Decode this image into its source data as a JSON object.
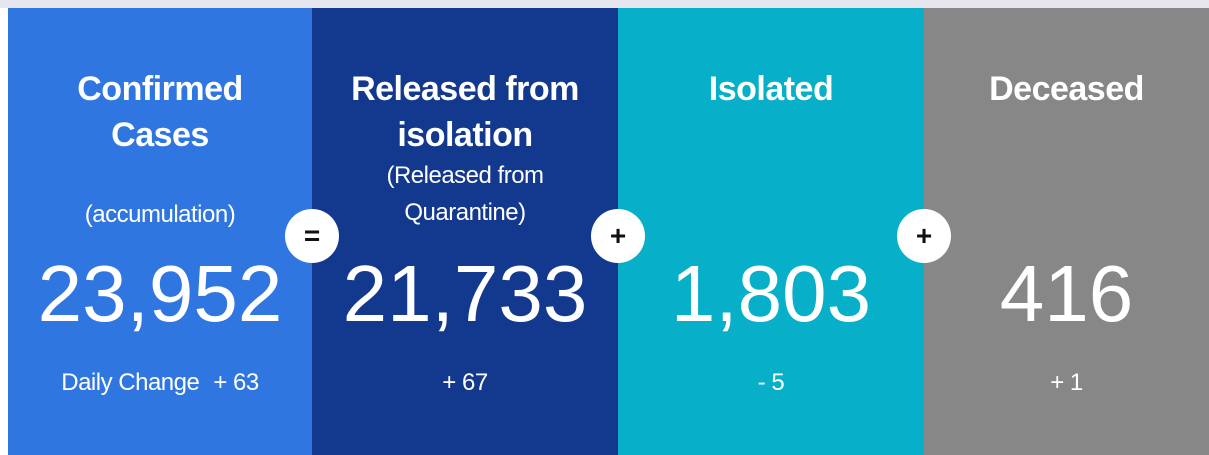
{
  "panels": [
    {
      "title": "Confirmed Cases",
      "subtitle": "(accumulation)",
      "value": "23,952",
      "change_label": "Daily Change",
      "change": "+ 63"
    },
    {
      "title": "Released from isolation",
      "subtitle": "(Released from Quarantine)",
      "value": "21,733",
      "change": "+ 67"
    },
    {
      "title": "Isolated",
      "value": "1,803",
      "change": "- 5"
    },
    {
      "title": "Deceased",
      "value": "416",
      "change": "+ 1"
    }
  ],
  "operators": [
    "=",
    "+",
    "+"
  ]
}
